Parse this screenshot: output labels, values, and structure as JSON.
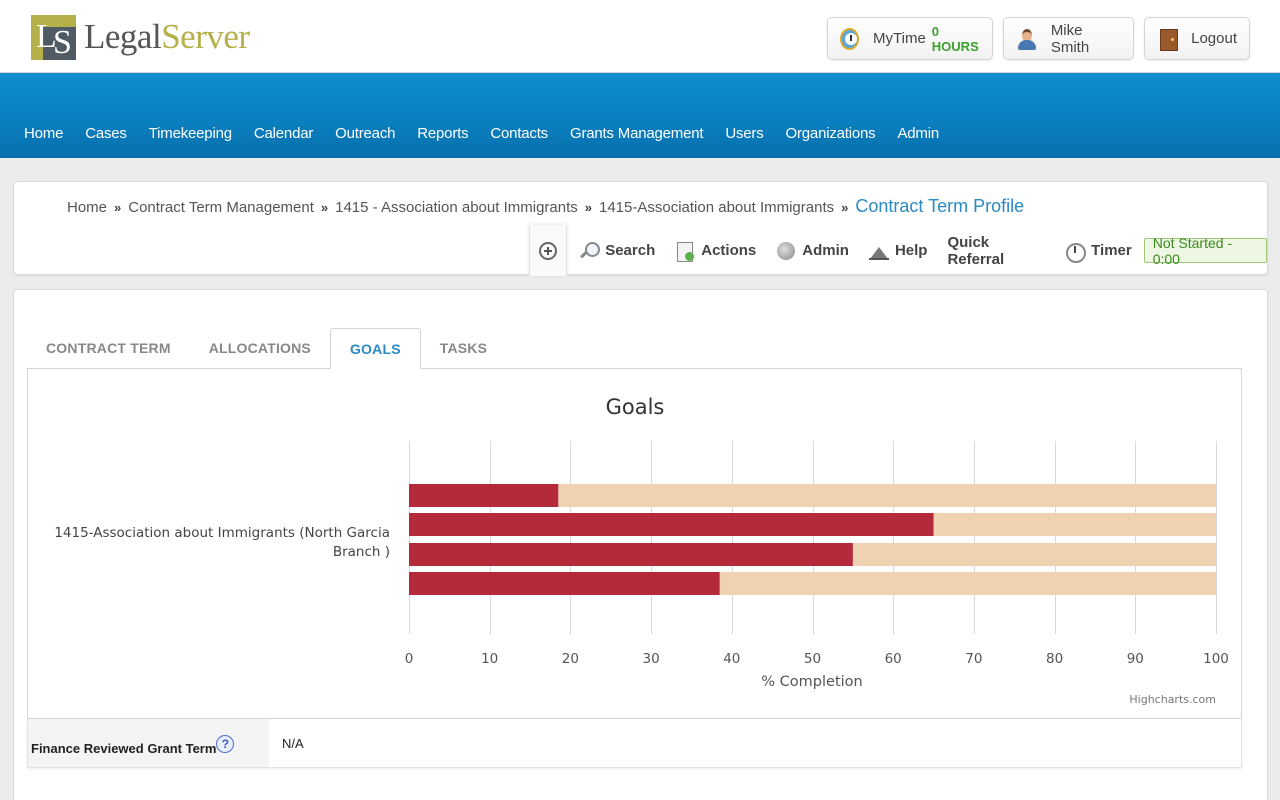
{
  "brand": {
    "part1": "Legal",
    "part2": "Server",
    "mark_l": "L",
    "mark_s": "S"
  },
  "header": {
    "mytime_label": "MyTime",
    "mytime_hours": "0 HOURS",
    "user_name": "Mike Smith",
    "logout_label": "Logout"
  },
  "nav": [
    "Home",
    "Cases",
    "Timekeeping",
    "Calendar",
    "Outreach",
    "Reports",
    "Contacts",
    "Grants Management",
    "Users",
    "Organizations",
    "Admin"
  ],
  "breadcrumb": {
    "items": [
      "Home",
      "Contract Term Management",
      "1415 - Association about Immigrants",
      "1415-Association about Immigrants"
    ],
    "separator": "»",
    "current": "Contract Term Profile"
  },
  "toolbar": {
    "search": "Search",
    "actions": "Actions",
    "admin": "Admin",
    "help": "Help",
    "quick_referral": "Quick Referral",
    "timer": "Timer",
    "status": "Not Started - 0:00"
  },
  "tabs": [
    {
      "label": "CONTRACT TERM",
      "active": false
    },
    {
      "label": "ALLOCATIONS",
      "active": false
    },
    {
      "label": "GOALS",
      "active": true
    },
    {
      "label": "TASKS",
      "active": false
    }
  ],
  "chart_data": {
    "type": "bar",
    "orientation": "horizontal",
    "stacked": true,
    "title": "Goals",
    "xlabel": "% Completion",
    "category_label": "1415-Association about Immigrants (North Garcia Branch )",
    "xlim": [
      0,
      100
    ],
    "ticks": [
      0,
      10,
      20,
      30,
      40,
      50,
      60,
      70,
      80,
      90,
      100
    ],
    "bars": [
      {
        "completed": 18.5
      },
      {
        "completed": 65
      },
      {
        "completed": 55
      },
      {
        "completed": 38.5
      }
    ],
    "colors": {
      "completed": "#b52a3a",
      "remaining": "#eed2b2"
    },
    "credits": "Highcharts.com",
    "grid": true
  },
  "finance": {
    "label": "Finance Reviewed Grant Term",
    "help_glyph": "?",
    "value": "N/A"
  }
}
